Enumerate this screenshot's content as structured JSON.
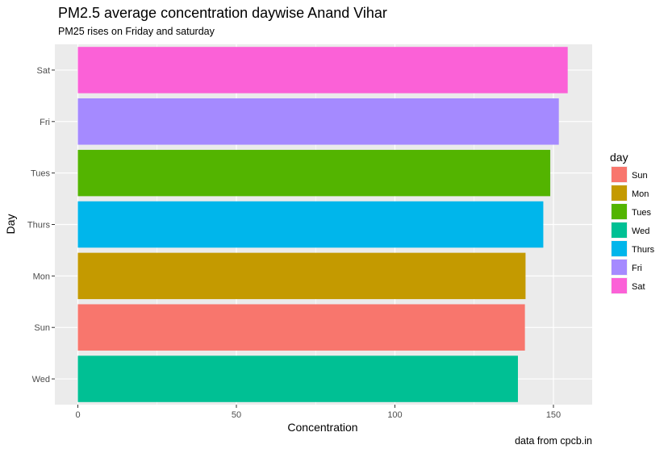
{
  "chart_data": {
    "type": "bar",
    "orientation": "horizontal",
    "title": "PM2.5 average concentration daywise Anand Vihar",
    "subtitle": "PM25 rises on Friday and saturday",
    "xlabel": "Concentration",
    "ylabel": "Day",
    "caption": "data from cpcb.in",
    "xlim": [
      0,
      160
    ],
    "x_ticks": [
      0,
      50,
      100,
      150
    ],
    "grid": true,
    "legend_placement": "right",
    "legend_title": "day",
    "categories": [
      "Sat",
      "Fri",
      "Tues",
      "Thurs",
      "Mon",
      "Sun",
      "Wed"
    ],
    "values": [
      154.5,
      151.7,
      149.0,
      146.8,
      141.2,
      141.0,
      138.8
    ],
    "colors": {
      "Sun": "#F8766D",
      "Mon": "#C49A00",
      "Tues": "#53B400",
      "Wed": "#00C094",
      "Thurs": "#00B6EB",
      "Fri": "#A58AFF",
      "Sat": "#FB61D7"
    },
    "legend_items": [
      "Sun",
      "Mon",
      "Tues",
      "Wed",
      "Thurs",
      "Fri",
      "Sat"
    ]
  }
}
